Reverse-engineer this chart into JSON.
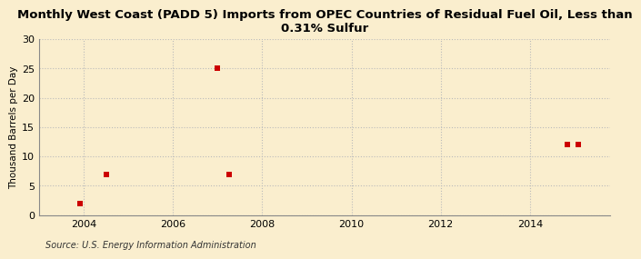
{
  "title": "Monthly West Coast (PADD 5) Imports from OPEC Countries of Residual Fuel Oil, Less than\n0.31% Sulfur",
  "ylabel": "Thousand Barrels per Day",
  "source": "Source: U.S. Energy Information Administration",
  "x_data": [
    2003.92,
    2004.5,
    2007.0,
    2007.25,
    2014.83,
    2015.08
  ],
  "y_data": [
    2,
    7,
    25,
    7,
    12,
    12
  ],
  "xlim": [
    2003.0,
    2015.8
  ],
  "ylim": [
    0,
    30
  ],
  "xticks": [
    2004,
    2006,
    2008,
    2010,
    2012,
    2014
  ],
  "yticks": [
    0,
    5,
    10,
    15,
    20,
    25,
    30
  ],
  "marker_color": "#cc0000",
  "marker_size": 4,
  "bg_color": "#faeece",
  "grid_color": "#bbbbbb",
  "title_fontsize": 9.5,
  "label_fontsize": 7.5,
  "tick_fontsize": 8,
  "source_fontsize": 7
}
